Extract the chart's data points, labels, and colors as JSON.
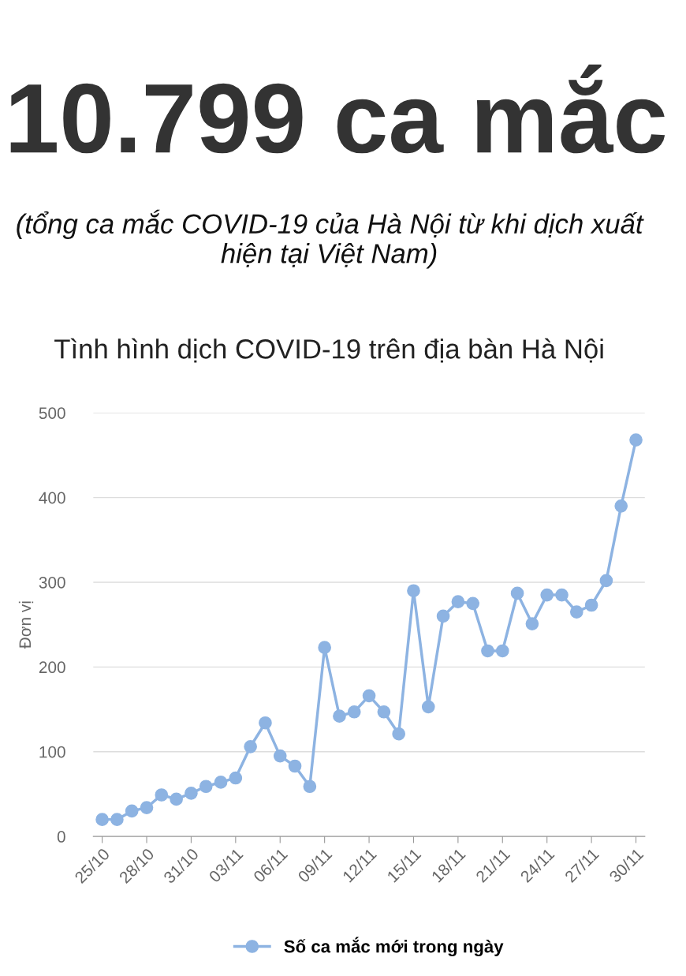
{
  "chart_data": {
    "type": "line",
    "title": "Tình hình dịch COVID-19 trên địa bàn Hà Nội",
    "subtitle": "(tổng ca mắc COVID-19 của Hà Nội từ khi dịch xuất hiện tại Việt Nam)",
    "annotations": [
      "10.799 ca mắc"
    ],
    "ylabel": "Đơn vị",
    "categories": [
      "25/10",
      null,
      null,
      "28/10",
      null,
      null,
      "31/10",
      null,
      null,
      "03/11",
      null,
      null,
      "06/11",
      null,
      null,
      "09/11",
      null,
      null,
      "12/11",
      null,
      null,
      "15/11",
      null,
      null,
      "18/11",
      null,
      null,
      "21/11",
      null,
      null,
      "24/11",
      null,
      null,
      "27/11",
      null,
      null,
      "30/11"
    ],
    "series": [
      {
        "name": "Số ca mắc mới trong ngày",
        "color": "#8db3e2",
        "values": [
          20,
          20,
          30,
          34,
          49,
          44,
          51,
          59,
          64,
          69,
          106,
          134,
          95,
          83,
          59,
          223,
          142,
          147,
          166,
          147,
          121,
          290,
          153,
          260,
          277,
          275,
          219,
          219,
          287,
          251,
          285,
          285,
          265,
          273,
          302,
          390,
          468
        ]
      }
    ],
    "ylim": [
      0,
      500
    ],
    "yticks": [
      0,
      100,
      200,
      300,
      400,
      500
    ],
    "grid": "y",
    "legend": "bottom",
    "marker": "circle",
    "line_style": "solid"
  }
}
